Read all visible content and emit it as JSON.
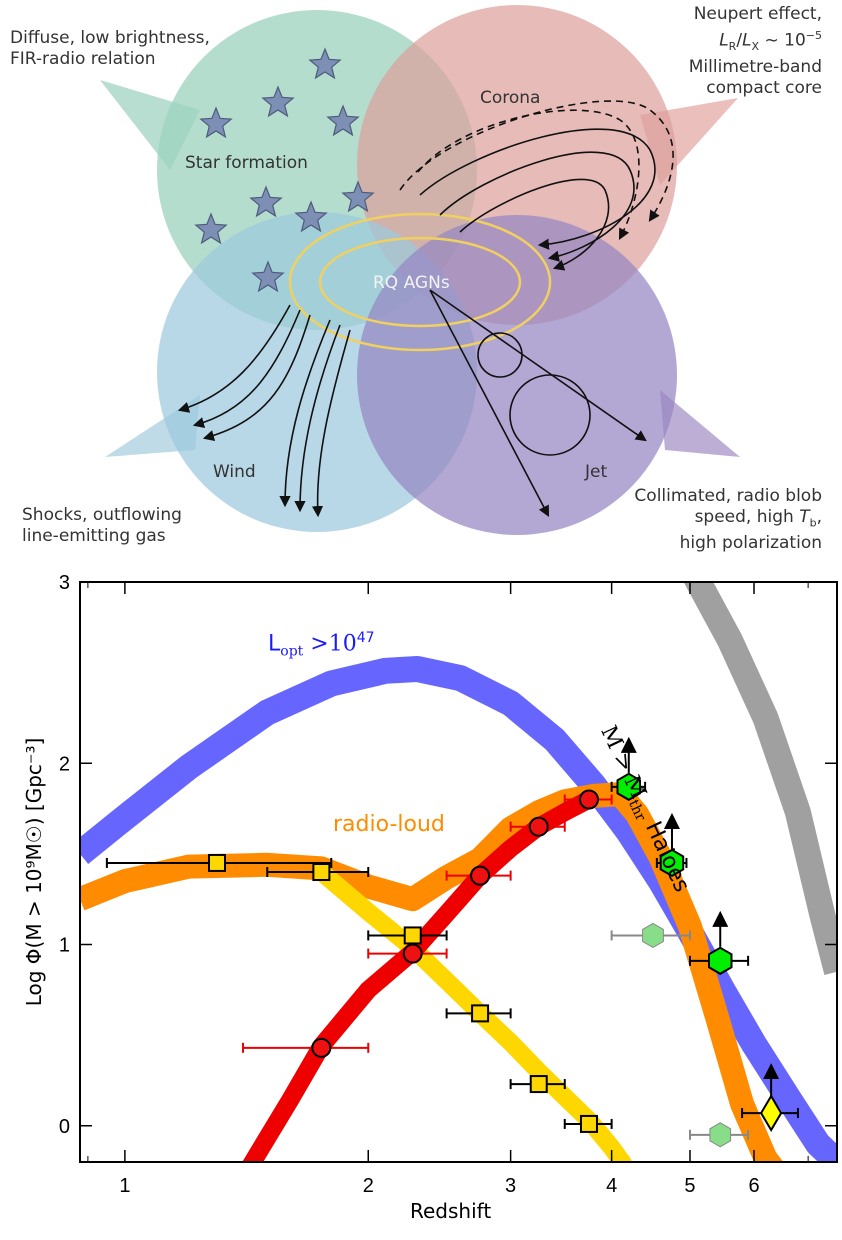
{
  "diagram": {
    "center_label": "RQ AGNs",
    "regions": [
      {
        "id": "star",
        "label": "Star formation",
        "note": [
          "Diffuse, low brightness,",
          "FIR-radio relation"
        ],
        "color": "#9fd3c0"
      },
      {
        "id": "corona",
        "label": "Corona",
        "note": [
          "Neupert effect,",
          "L_R/L_X ~ 10^-5",
          "Millimetre-band",
          "compact core"
        ],
        "color": "#e3aaa5"
      },
      {
        "id": "wind",
        "label": "Wind",
        "note": [
          "Shocks, outflowing",
          "line-emitting gas"
        ],
        "color": "#a9cfe0"
      },
      {
        "id": "jet",
        "label": "Jet",
        "note": [
          "Collimated, radio blob",
          "speed, high T_b,",
          "high polarization"
        ],
        "color": "#a793c7"
      }
    ],
    "corona_note": {
      "line1": "Neupert effect,",
      "lr": "L",
      "lr_sub": "R",
      "slash": "/",
      "lx": "L",
      "lx_sub": "X",
      "approx": " ~ 10",
      "exp": "−5",
      "line3": "Millimetre-band",
      "line4": "compact core"
    },
    "jet_note": {
      "line1": "Collimated, radio blob",
      "line2a": "speed, high ",
      "tb": "T",
      "tb_sub": "b",
      "line2b": ",",
      "line3": "high polarization"
    }
  },
  "chart_data": {
    "type": "line",
    "xlabel": "Redshift",
    "ylabel": "Log Φ(M > 10⁹M☉) [Gpc⁻³]",
    "xscale": "log",
    "xlim": [
      0.88,
      7.6
    ],
    "ylim": [
      -0.2,
      3.0
    ],
    "xticks": [
      1,
      2,
      3,
      4,
      5,
      6
    ],
    "yticks": [
      0,
      1,
      2,
      3
    ],
    "grid": false,
    "annotations": {
      "lopt": {
        "text": "L",
        "sub": "opt",
        "rest": " >10",
        "exp": "47",
        "color": "#1a1aff"
      },
      "radio_loud": {
        "text": "radio-loud",
        "color": "#ff8c00"
      },
      "haloes": {
        "text": "M > M",
        "sub": "thr",
        "rest": " Haloes",
        "color": "#111111"
      }
    },
    "series": [
      {
        "key": "lopt",
        "color": "#6666ff",
        "x": [
          0.88,
          1.0,
          1.2,
          1.5,
          1.8,
          2.1,
          2.3,
          2.6,
          3.0,
          3.4,
          3.8,
          4.2,
          4.6,
          5.0,
          5.5,
          6.0,
          6.6,
          7.2,
          7.6
        ],
        "y": [
          1.5,
          1.7,
          1.98,
          2.28,
          2.44,
          2.51,
          2.52,
          2.47,
          2.33,
          2.13,
          1.88,
          1.62,
          1.35,
          1.07,
          0.74,
          0.45,
          0.16,
          -0.1,
          -0.2
        ]
      },
      {
        "key": "radio_loud",
        "color": "#ff8c00",
        "x": [
          0.88,
          1.0,
          1.2,
          1.5,
          1.75,
          2.0,
          2.27,
          2.5,
          2.75,
          3.0,
          3.25,
          3.5,
          3.8,
          4.1,
          4.3,
          4.6,
          5.0,
          5.4,
          5.8,
          6.2,
          6.5
        ],
        "y": [
          1.25,
          1.35,
          1.43,
          1.44,
          1.42,
          1.32,
          1.25,
          1.37,
          1.47,
          1.64,
          1.73,
          1.79,
          1.82,
          1.83,
          1.72,
          1.48,
          1.1,
          0.6,
          0.12,
          -0.18,
          -0.3
        ]
      },
      {
        "key": "yellow",
        "color": "#ffd700",
        "x": [
          1.75,
          2.0,
          2.27,
          2.5,
          2.75,
          3.0,
          3.25,
          3.5,
          3.75,
          4.0,
          4.15
        ],
        "y": [
          1.4,
          1.18,
          0.98,
          0.8,
          0.62,
          0.46,
          0.3,
          0.16,
          0.03,
          -0.12,
          -0.22
        ]
      },
      {
        "key": "red",
        "color": "#ee0000",
        "x": [
          1.43,
          1.6,
          1.75,
          2.0,
          2.27,
          2.5,
          2.75,
          3.0,
          3.25,
          3.5,
          3.75
        ],
        "y": [
          -0.22,
          0.14,
          0.44,
          0.75,
          0.96,
          1.17,
          1.38,
          1.53,
          1.65,
          1.73,
          1.8
        ]
      },
      {
        "key": "haloes",
        "color": "#a0a0a0",
        "x": [
          5.05,
          5.6,
          6.2,
          6.8,
          7.3,
          7.6
        ],
        "y": [
          3.05,
          2.68,
          2.25,
          1.73,
          1.15,
          0.85
        ]
      }
    ],
    "points": {
      "squares": {
        "color": "#ffd700",
        "x": [
          1.3,
          1.75,
          2.27,
          2.75,
          3.25,
          3.75
        ],
        "y": [
          1.45,
          1.4,
          1.05,
          0.62,
          0.23,
          0.01
        ],
        "xerr_lo": [
          0.35,
          0.25,
          0.27,
          0.25,
          0.25,
          0.25
        ],
        "xerr_hi": [
          0.5,
          0.25,
          0.23,
          0.25,
          0.25,
          0.25
        ]
      },
      "circles": {
        "color": "#ee1111",
        "x": [
          1.75,
          2.27,
          2.75,
          3.25,
          3.75
        ],
        "y": [
          0.43,
          0.95,
          1.38,
          1.65,
          1.8
        ],
        "xerr_lo": [
          0.35,
          0.27,
          0.25,
          0.25,
          0.25
        ],
        "xerr_hi": [
          0.25,
          0.23,
          0.25,
          0.25,
          0.25
        ]
      },
      "hexagons": {
        "color": "#00ee00",
        "x": [
          4.2,
          4.75,
          5.45
        ],
        "y": [
          1.87,
          1.45,
          0.91
        ],
        "xerr_lo": [
          0.2,
          0.2,
          0.45
        ],
        "xerr_hi": [
          0.2,
          0.2,
          0.45
        ],
        "lower_limit": true
      },
      "hexagons_faint": {
        "color": "#88dd88",
        "x": [
          4.5,
          5.45
        ],
        "y": [
          1.05,
          -0.05
        ],
        "xerr_lo": [
          0.5,
          0.45
        ],
        "xerr_hi": [
          0.5,
          0.45
        ]
      },
      "diamond": {
        "color": "#ffff00",
        "x": [
          6.3
        ],
        "y": [
          0.07
        ],
        "xerr_lo": [
          0.5
        ],
        "xerr_hi": [
          0.5
        ],
        "lower_limit": true
      }
    }
  }
}
